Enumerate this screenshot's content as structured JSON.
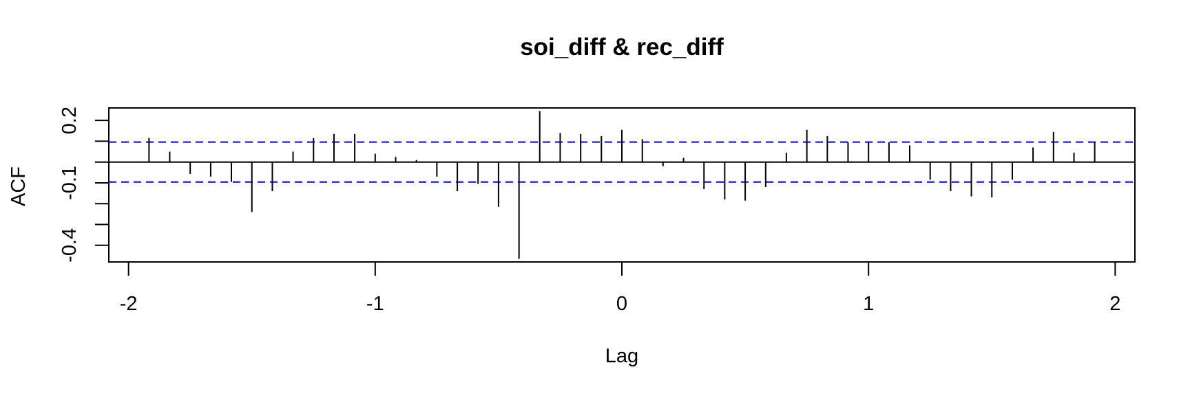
{
  "chart_data": {
    "type": "bar",
    "title": "soi_diff & rec_diff",
    "xlabel": "Lag",
    "ylabel": "ACF",
    "xlim": [
      -2.08,
      2.08
    ],
    "ylim": [
      -0.48,
      0.26
    ],
    "x_ticks": [
      -2,
      -1,
      0,
      1,
      2
    ],
    "x_tick_labels": [
      "-2",
      "-1",
      "0",
      "1",
      "2"
    ],
    "y_ticks": [
      -0.4,
      -0.3,
      -0.2,
      -0.1,
      0.0,
      0.1,
      0.2
    ],
    "y_tick_labels": [
      "-0.4",
      "",
      "",
      "-0.1",
      "",
      "",
      "0.2"
    ],
    "confidence_bounds": [
      0.096,
      -0.096
    ],
    "zero_line": true,
    "grid": false,
    "legend": "none",
    "colors": {
      "spikes": "#000000",
      "confidence": "#0000ee",
      "frame": "#000000"
    },
    "x": [
      -1.917,
      -1.833,
      -1.75,
      -1.667,
      -1.583,
      -1.5,
      -1.417,
      -1.333,
      -1.25,
      -1.167,
      -1.083,
      -1.0,
      -0.917,
      -0.833,
      -0.75,
      -0.667,
      -0.583,
      -0.5,
      -0.417,
      -0.333,
      -0.25,
      -0.167,
      -0.083,
      0.0,
      0.083,
      0.167,
      0.25,
      0.333,
      0.417,
      0.5,
      0.583,
      0.667,
      0.75,
      0.833,
      0.917,
      1.0,
      1.083,
      1.167,
      1.25,
      1.333,
      1.417,
      1.5,
      1.583,
      1.667,
      1.75,
      1.833,
      1.917
    ],
    "values": [
      0.116,
      0.05,
      -0.057,
      -0.07,
      -0.095,
      -0.24,
      -0.14,
      0.05,
      0.115,
      0.135,
      0.135,
      0.04,
      0.025,
      0.01,
      -0.07,
      -0.14,
      -0.105,
      -0.215,
      -0.465,
      0.245,
      0.14,
      0.135,
      0.125,
      0.155,
      0.11,
      -0.02,
      0.02,
      -0.13,
      -0.18,
      -0.185,
      -0.12,
      0.045,
      0.155,
      0.125,
      0.095,
      0.095,
      0.095,
      0.08,
      -0.085,
      -0.14,
      -0.165,
      -0.17,
      -0.085,
      0.07,
      0.145,
      0.045,
      0.095
    ]
  }
}
